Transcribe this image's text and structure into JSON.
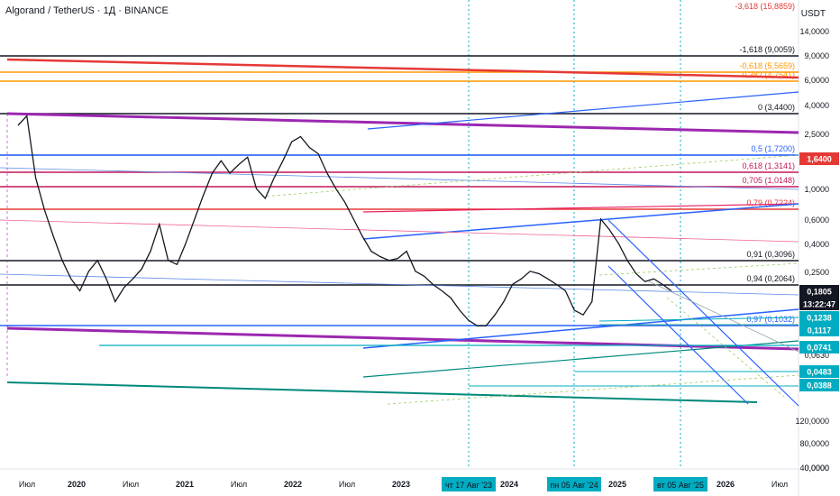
{
  "header": {
    "title": "Algorand / TetherUS · 1Д · BINANCE"
  },
  "axis": {
    "unit": "USDT"
  },
  "chart_data": {
    "type": "line",
    "title": "Algorand / TetherUS · 1Д · BINANCE",
    "yaxis_scale": "log",
    "y_ticks": [
      "14,0000",
      "9,0000",
      "6,0000",
      "4,0000",
      "2,5000",
      "1,6000",
      "1,0000",
      "0,6000",
      "0,4000",
      "0,2500",
      "0,1600",
      "0,0630",
      "120,0000",
      "80,0000",
      "40,0000",
      "0,0000"
    ],
    "x_ticks": [
      "Июл",
      "2020",
      "Июл",
      "2021",
      "Июл",
      "2022",
      "Июл",
      "2023",
      "2024",
      "2025",
      "2026",
      "Июл"
    ],
    "x_highlight_ticks": [
      "чт 17 Авг '23",
      "пн 05 Авг '24",
      "вт 05 Авг '25"
    ],
    "fib_levels": [
      {
        "label": "-3,618 (15,8859)",
        "color": "#e53935"
      },
      {
        "label": "-1,618 (9,0059)",
        "color": "#131722"
      },
      {
        "label": "-0,618 (5,5659)",
        "color": "#ff9800"
      },
      {
        "label": "0,382 (4,7541)",
        "color": "#ff9800"
      },
      {
        "label": "0 (3,4400)",
        "color": "#131722"
      },
      {
        "label": "0,5 (1,7200)",
        "color": "#2962ff"
      },
      {
        "label": "0,618 (1,3141)",
        "color": "#c2185b"
      },
      {
        "label": "0,705 (1,0148)",
        "color": "#c2185b"
      },
      {
        "label": "0,79 (0,7224)",
        "color": "#e53935"
      },
      {
        "label": "0,91 (0,3096)",
        "color": "#131722"
      },
      {
        "label": "0,94 (0,2064)",
        "color": "#131722"
      },
      {
        "label": "0,97 (0,1032)",
        "color": "#2962ff"
      }
    ],
    "price_tags": [
      {
        "label": "1,6400",
        "color": "#e53935"
      },
      {
        "label": "0,1805",
        "color": "#131722"
      },
      {
        "label": "13:22:47",
        "color": "#131722"
      },
      {
        "label": "0,1238",
        "color": "#00acc1"
      },
      {
        "label": "0,1117",
        "color": "#00acc1"
      },
      {
        "label": "0,0741",
        "color": "#00acc1"
      },
      {
        "label": "0,0483",
        "color": "#00acc1"
      },
      {
        "label": "0,0388",
        "color": "#00acc1"
      }
    ],
    "series": [
      {
        "values": [
          2.9,
          3.4,
          1.2,
          0.7,
          0.45,
          0.3,
          0.22,
          0.18,
          0.25,
          0.3,
          0.22,
          0.15,
          0.19,
          0.22,
          0.26,
          0.35,
          0.55,
          0.3,
          0.28,
          0.4,
          0.6,
          0.9,
          1.3,
          1.6,
          1.3,
          1.5,
          1.7,
          1.0,
          0.85,
          1.2,
          1.6,
          2.2,
          2.4,
          2.0,
          1.8,
          1.3,
          1.0,
          0.8,
          0.6,
          0.45,
          0.35,
          0.32,
          0.3,
          0.31,
          0.35,
          0.25,
          0.23,
          0.2,
          0.18,
          0.16,
          0.13,
          0.11,
          0.1,
          0.1,
          0.12,
          0.15,
          0.2,
          0.22,
          0.25,
          0.24,
          0.22,
          0.2,
          0.18,
          0.13,
          0.12,
          0.15,
          0.6,
          0.5,
          0.4,
          0.3,
          0.24,
          0.21,
          0.22,
          0.2,
          0.18
        ]
      }
    ]
  }
}
